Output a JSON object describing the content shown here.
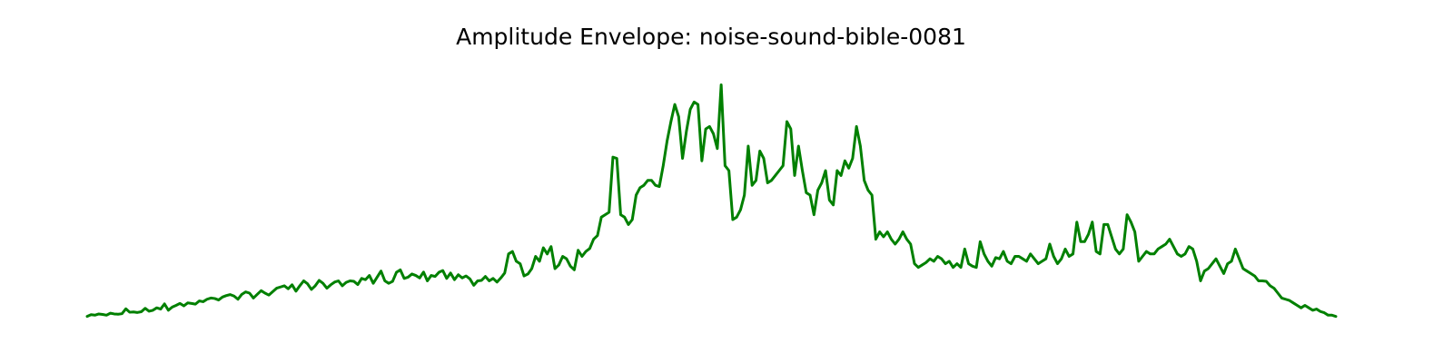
{
  "chart_data": {
    "type": "line",
    "title": "Amplitude Envelope: noise-sound-bible-0081",
    "xlabel": "",
    "ylabel": "",
    "axes_visible": false,
    "grid": false,
    "legend": "none",
    "xlim": [
      0,
      300
    ],
    "ylim": [
      0,
      1
    ],
    "series": [
      {
        "color": "#008000",
        "values": [
          0.005,
          0.012,
          0.01,
          0.015,
          0.013,
          0.01,
          0.018,
          0.015,
          0.014,
          0.016,
          0.036,
          0.022,
          0.023,
          0.021,
          0.024,
          0.038,
          0.026,
          0.03,
          0.04,
          0.035,
          0.056,
          0.03,
          0.043,
          0.05,
          0.058,
          0.048,
          0.06,
          0.058,
          0.055,
          0.068,
          0.065,
          0.075,
          0.08,
          0.078,
          0.072,
          0.084,
          0.09,
          0.094,
          0.088,
          0.075,
          0.095,
          0.105,
          0.1,
          0.08,
          0.095,
          0.11,
          0.1,
          0.092,
          0.106,
          0.12,
          0.125,
          0.13,
          0.118,
          0.134,
          0.108,
          0.13,
          0.15,
          0.138,
          0.115,
          0.13,
          0.152,
          0.14,
          0.12,
          0.134,
          0.145,
          0.15,
          0.13,
          0.144,
          0.15,
          0.148,
          0.135,
          0.16,
          0.155,
          0.172,
          0.14,
          0.165,
          0.19,
          0.15,
          0.14,
          0.148,
          0.185,
          0.195,
          0.16,
          0.165,
          0.178,
          0.172,
          0.162,
          0.186,
          0.15,
          0.172,
          0.168,
          0.185,
          0.192,
          0.16,
          0.182,
          0.155,
          0.175,
          0.162,
          0.17,
          0.158,
          0.132,
          0.15,
          0.152,
          0.168,
          0.15,
          0.16,
          0.145,
          0.162,
          0.182,
          0.26,
          0.27,
          0.23,
          0.22,
          0.17,
          0.178,
          0.2,
          0.25,
          0.23,
          0.285,
          0.26,
          0.29,
          0.2,
          0.215,
          0.25,
          0.24,
          0.21,
          0.195,
          0.275,
          0.25,
          0.27,
          0.282,
          0.32,
          0.335,
          0.41,
          0.42,
          0.43,
          0.655,
          0.65,
          0.42,
          0.41,
          0.38,
          0.4,
          0.5,
          0.53,
          0.54,
          0.56,
          0.56,
          0.54,
          0.535,
          0.62,
          0.72,
          0.8,
          0.87,
          0.82,
          0.65,
          0.76,
          0.85,
          0.88,
          0.87,
          0.64,
          0.77,
          0.78,
          0.75,
          0.69,
          0.95,
          0.62,
          0.6,
          0.4,
          0.41,
          0.44,
          0.5,
          0.7,
          0.54,
          0.56,
          0.68,
          0.65,
          0.55,
          0.56,
          0.58,
          0.6,
          0.62,
          0.8,
          0.77,
          0.58,
          0.7,
          0.6,
          0.51,
          0.5,
          0.42,
          0.52,
          0.55,
          0.6,
          0.48,
          0.46,
          0.6,
          0.58,
          0.64,
          0.61,
          0.65,
          0.78,
          0.7,
          0.56,
          0.52,
          0.5,
          0.32,
          0.35,
          0.33,
          0.35,
          0.32,
          0.3,
          0.32,
          0.35,
          0.32,
          0.3,
          0.22,
          0.205,
          0.215,
          0.225,
          0.24,
          0.23,
          0.25,
          0.24,
          0.22,
          0.23,
          0.205,
          0.22,
          0.205,
          0.28,
          0.22,
          0.21,
          0.205,
          0.31,
          0.26,
          0.23,
          0.21,
          0.245,
          0.24,
          0.27,
          0.23,
          0.22,
          0.25,
          0.25,
          0.24,
          0.23,
          0.26,
          0.24,
          0.22,
          0.23,
          0.24,
          0.3,
          0.25,
          0.22,
          0.24,
          0.28,
          0.25,
          0.26,
          0.39,
          0.31,
          0.31,
          0.34,
          0.39,
          0.27,
          0.26,
          0.38,
          0.38,
          0.33,
          0.28,
          0.26,
          0.28,
          0.42,
          0.39,
          0.35,
          0.23,
          0.25,
          0.27,
          0.26,
          0.26,
          0.28,
          0.29,
          0.3,
          0.32,
          0.29,
          0.26,
          0.25,
          0.26,
          0.29,
          0.28,
          0.23,
          0.15,
          0.19,
          0.2,
          0.22,
          0.24,
          0.21,
          0.18,
          0.22,
          0.23,
          0.28,
          0.24,
          0.2,
          0.19,
          0.18,
          0.17,
          0.15,
          0.15,
          0.148,
          0.13,
          0.12,
          0.1,
          0.08,
          0.075,
          0.07,
          0.06,
          0.05,
          0.04,
          0.05,
          0.04,
          0.03,
          0.035,
          0.025,
          0.02,
          0.01,
          0.01,
          0.005
        ]
      }
    ]
  }
}
